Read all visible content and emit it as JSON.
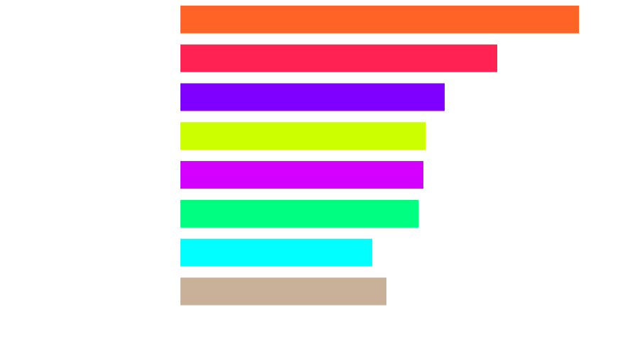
{
  "chart_data": {
    "type": "barh",
    "categories": [
      null,
      null,
      null,
      null,
      null,
      null,
      null,
      null
    ],
    "values": [
      561,
      446,
      372,
      345,
      342,
      335,
      270,
      290
    ],
    "colors": [
      "#ff6426",
      "#ff2252",
      "#8000ff",
      "#ccff00",
      "#d400ff",
      "#00ff80",
      "#00ffff",
      "#c9b199"
    ],
    "xlim": [
      0,
      600
    ]
  }
}
